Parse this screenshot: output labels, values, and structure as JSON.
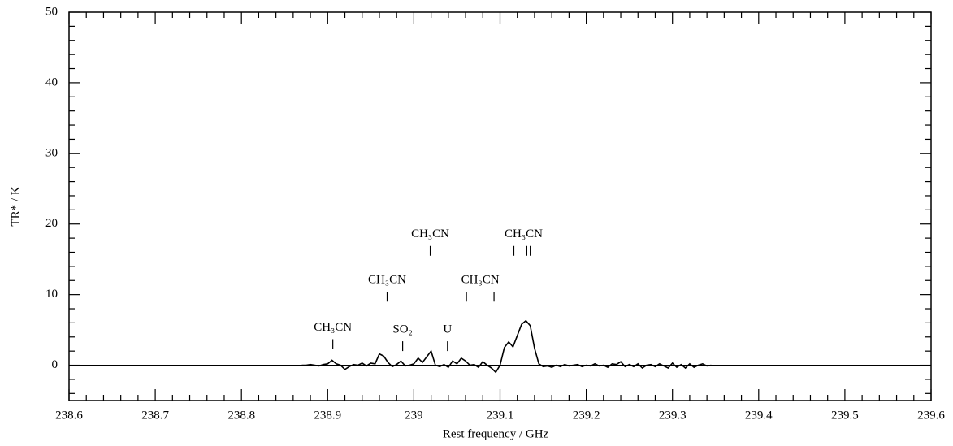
{
  "chart_data": {
    "type": "line",
    "x_label": "Rest frequency / GHz",
    "y_label": "TR* / K",
    "xlim": [
      238.6,
      239.6
    ],
    "ylim": [
      -5,
      50
    ],
    "xticks": [
      238.6,
      238.7,
      238.8,
      238.9,
      239,
      239.1,
      239.2,
      239.3,
      239.4,
      239.5,
      239.6
    ],
    "yticks": [
      0,
      10,
      20,
      30,
      40,
      50
    ],
    "color": "#000000",
    "x": [
      238.87,
      238.875,
      238.88,
      238.885,
      238.89,
      238.895,
      238.9,
      238.905,
      238.91,
      238.915,
      238.92,
      238.925,
      238.93,
      238.935,
      238.94,
      238.945,
      238.95,
      238.955,
      238.96,
      238.965,
      238.97,
      238.975,
      238.98,
      238.985,
      238.99,
      238.995,
      239.0,
      239.005,
      239.01,
      239.015,
      239.02,
      239.025,
      239.03,
      239.035,
      239.04,
      239.045,
      239.05,
      239.055,
      239.06,
      239.065,
      239.07,
      239.075,
      239.08,
      239.085,
      239.09,
      239.095,
      239.1,
      239.105,
      239.11,
      239.115,
      239.12,
      239.125,
      239.13,
      239.135,
      239.14,
      239.145,
      239.15,
      239.155,
      239.16,
      239.165,
      239.17,
      239.175,
      239.18,
      239.185,
      239.19,
      239.195,
      239.2,
      239.205,
      239.21,
      239.215,
      239.22,
      239.225,
      239.23,
      239.235,
      239.24,
      239.245,
      239.25,
      239.255,
      239.26,
      239.265,
      239.27,
      239.275,
      239.28,
      239.285,
      239.29,
      239.295,
      239.3,
      239.305,
      239.31,
      239.315,
      239.32,
      239.325,
      239.33,
      239.335,
      239.34,
      239.345
    ],
    "values": [
      0,
      0,
      0.1,
      0,
      -0.1,
      0.1,
      0.2,
      0.7,
      0.2,
      0,
      -0.6,
      -0.2,
      0.1,
      0,
      0.3,
      -0.1,
      0.3,
      0.2,
      1.6,
      1.3,
      0.4,
      -0.2,
      0.1,
      0.6,
      -0.1,
      0,
      0.2,
      1.0,
      0.4,
      1.2,
      2.0,
      0,
      -0.2,
      0.1,
      -0.3,
      0.6,
      0.2,
      1.0,
      0.6,
      0,
      0.1,
      -0.3,
      0.5,
      0,
      -0.4,
      -1.0,
      0,
      2.5,
      3.3,
      2.6,
      4.2,
      5.8,
      6.3,
      5.6,
      2.4,
      0.2,
      -0.2,
      -0.1,
      -0.3,
      0,
      -0.2,
      0.1,
      -0.1,
      0,
      0.1,
      -0.2,
      0,
      -0.1,
      0.2,
      -0.1,
      0,
      -0.3,
      0.2,
      0.1,
      0.5,
      -0.2,
      0.1,
      -0.2,
      0.2,
      -0.4,
      0,
      0.1,
      -0.2,
      0.2,
      -0.1,
      -0.4,
      0.3,
      -0.3,
      0.1,
      -0.4,
      0.2,
      -0.3,
      0,
      0.2,
      -0.1,
      0
    ],
    "annotations": [
      {
        "text": "CH₃CN",
        "x": [
          238.906
        ],
        "y": 5.3
      },
      {
        "text": "CH₃CN",
        "x": [
          238.969
        ],
        "y": 12
      },
      {
        "text": "SO₂",
        "x": [
          238.987
        ],
        "y": 5
      },
      {
        "text": "CH₃CN",
        "x": [
          239.019
        ],
        "y": 18.5
      },
      {
        "text": "U",
        "x": [
          239.039
        ],
        "y": 5
      },
      {
        "text": "CH₃CN",
        "x": [
          239.061,
          239.093
        ],
        "y": 12
      },
      {
        "text": "CH₃CN",
        "x": [
          239.116,
          239.131,
          239.135
        ],
        "y": 18.5
      }
    ]
  }
}
